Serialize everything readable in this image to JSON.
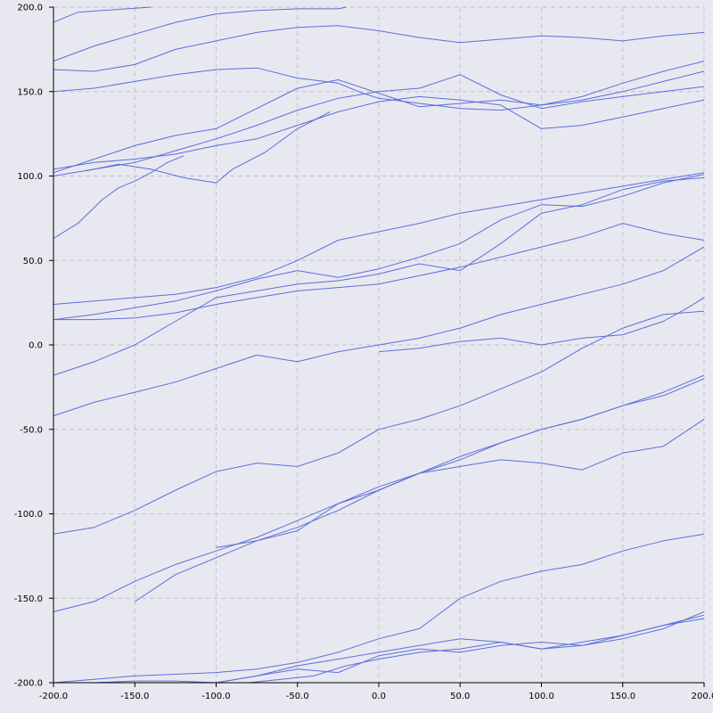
{
  "chart_data": {
    "type": "line",
    "title": "",
    "xlabel": "",
    "ylabel": "",
    "xlim": [
      -200,
      200
    ],
    "ylim": [
      -200,
      200
    ],
    "grid": true,
    "line_color": "#5b6fdc",
    "background_color": "#e8e8f0",
    "grid_color": "#c2c2cc",
    "xticks": [
      -200,
      -150,
      -100,
      -50,
      0,
      50,
      100,
      150,
      200
    ],
    "yticks": [
      -200,
      -150,
      -100,
      -50,
      0,
      50,
      100,
      150,
      200
    ],
    "xtick_labels": [
      "-200.0",
      "-150.0",
      "-100.0",
      "-50.0",
      "0.0",
      "50.0",
      "100.0",
      "150.0",
      "200.0"
    ],
    "ytick_labels": [
      "-200.0",
      "-150.0",
      "-100.0",
      "-50.0",
      "0.0",
      "50.0",
      "100.0",
      "150.0",
      "200.0"
    ],
    "series": [
      {
        "x": [
          -200,
          -185,
          -170,
          -155,
          -140
        ],
        "y": [
          191,
          197,
          198,
          199,
          200
        ]
      },
      {
        "x": [
          -200,
          -175,
          -150,
          -125,
          -100,
          -75,
          -50,
          -25,
          -20
        ],
        "y": [
          168,
          177,
          184,
          191,
          196,
          198,
          199,
          199,
          200
        ]
      },
      {
        "x": [
          -200,
          -175,
          -150,
          -125,
          -100,
          -75,
          -50,
          -25,
          0,
          25,
          50,
          75,
          100,
          125,
          150,
          175,
          200
        ],
        "y": [
          163,
          162,
          166,
          175,
          180,
          185,
          188,
          189,
          186,
          182,
          179,
          181,
          183,
          182,
          180,
          183,
          185
        ]
      },
      {
        "x": [
          -200,
          -175,
          -150,
          -125,
          -100,
          -75,
          -50,
          -25,
          -10,
          0,
          25,
          50,
          75,
          100,
          125,
          150,
          175,
          200
        ],
        "y": [
          150,
          152,
          156,
          160,
          163,
          164,
          158,
          155,
          149,
          146,
          143,
          140,
          139,
          142,
          147,
          155,
          162,
          168
        ]
      },
      {
        "x": [
          -200,
          -175,
          -150,
          -125,
          -100,
          -75,
          -50,
          -25,
          0,
          25,
          50,
          75,
          100,
          125,
          150,
          175,
          200
        ],
        "y": [
          102,
          110,
          118,
          124,
          128,
          140,
          152,
          157,
          149,
          141,
          143,
          145,
          142,
          145,
          150,
          156,
          162
        ]
      },
      {
        "x": [
          -200,
          -175,
          -150,
          -125,
          -100,
          -75,
          -50,
          -25,
          0,
          25,
          50,
          75,
          100,
          125,
          150,
          175,
          200
        ],
        "y": [
          100,
          104,
          108,
          115,
          122,
          130,
          139,
          146,
          150,
          152,
          160,
          148,
          140,
          144,
          147,
          150,
          153
        ]
      },
      {
        "x": [
          -200,
          -175,
          -150,
          -125,
          -100,
          -75,
          -50,
          -25,
          0,
          25,
          50,
          75,
          100,
          125,
          150,
          175,
          200
        ],
        "y": [
          104,
          108,
          110,
          113,
          118,
          122,
          130,
          138,
          144,
          147,
          145,
          142,
          128,
          130,
          135,
          140,
          145
        ]
      },
      {
        "x": [
          -180,
          -160,
          -140,
          -120,
          -100,
          -90,
          -70,
          -50,
          -30
        ],
        "y": [
          103,
          107,
          104,
          99,
          96,
          104,
          114,
          128,
          138
        ]
      },
      {
        "x": [
          -200,
          -185,
          -170,
          -160,
          -150,
          -140,
          -130,
          -120
        ],
        "y": [
          63,
          72,
          86,
          93,
          97,
          102,
          108,
          112
        ]
      },
      {
        "x": [
          -200,
          -175,
          -150,
          -125,
          -100,
          -75,
          -50,
          -25,
          0,
          25,
          50,
          75,
          100,
          125,
          150,
          175,
          200
        ],
        "y": [
          24,
          26,
          28,
          30,
          34,
          40,
          50,
          62,
          67,
          72,
          78,
          82,
          86,
          90,
          94,
          98,
          102
        ]
      },
      {
        "x": [
          -200,
          -175,
          -150,
          -125,
          -100,
          -75,
          -50,
          -25,
          0,
          25,
          50,
          75,
          100,
          125,
          150,
          175,
          200
        ],
        "y": [
          15,
          18,
          22,
          26,
          32,
          39,
          44,
          40,
          45,
          52,
          60,
          74,
          83,
          82,
          88,
          96,
          101
        ]
      },
      {
        "x": [
          -200,
          -175,
          -150,
          -125,
          -100,
          -75,
          -50,
          -25,
          0,
          25,
          50,
          75,
          100,
          125,
          150,
          175,
          200
        ],
        "y": [
          -18,
          -10,
          0,
          14,
          28,
          32,
          36,
          38,
          42,
          48,
          44,
          60,
          78,
          83,
          92,
          97,
          99
        ]
      },
      {
        "x": [
          -200,
          -175,
          -150,
          -125,
          -100,
          -75,
          -50,
          -25,
          0,
          25,
          50,
          75,
          100,
          125,
          150,
          175,
          200
        ],
        "y": [
          -42,
          -34,
          -28,
          -22,
          -14,
          -6,
          -10,
          -4,
          0,
          4,
          10,
          18,
          24,
          30,
          36,
          44,
          58
        ]
      },
      {
        "x": [
          -200,
          -175,
          -150,
          -125,
          -100,
          -75,
          -50,
          -25,
          0,
          25,
          50,
          75,
          100,
          125,
          150,
          175,
          200
        ],
        "y": [
          15,
          15,
          16,
          19,
          24,
          28,
          32,
          34,
          36,
          41,
          46,
          52,
          58,
          64,
          72,
          66,
          62
        ]
      },
      {
        "x": [
          0,
          25,
          50,
          75,
          100,
          125,
          150,
          175,
          190,
          200
        ],
        "y": [
          -4,
          -2,
          2,
          4,
          0,
          4,
          6,
          14,
          22,
          28
        ]
      },
      {
        "x": [
          -200,
          -175,
          -150,
          -125,
          -100,
          -75,
          -50,
          -25,
          0,
          25,
          50,
          75,
          100,
          125,
          150,
          175,
          200
        ],
        "y": [
          -112,
          -108,
          -98,
          -86,
          -75,
          -70,
          -72,
          -64,
          -50,
          -44,
          -36,
          -26,
          -16,
          -2,
          10,
          18,
          20
        ]
      },
      {
        "x": [
          -150,
          -125,
          -100,
          -75,
          -50,
          -25,
          0,
          25,
          50,
          75,
          100,
          125,
          150,
          175,
          200
        ],
        "y": [
          -152,
          -136,
          -126,
          -116,
          -110,
          -94,
          -84,
          -76,
          -68,
          -58,
          -50,
          -44,
          -36,
          -28,
          -18
        ]
      },
      {
        "x": [
          -200,
          -175,
          -150,
          -125,
          -100,
          -75,
          -50,
          -25,
          0,
          25,
          50,
          75,
          100,
          125,
          150,
          175,
          200
        ],
        "y": [
          -158,
          -152,
          -140,
          -130,
          -122,
          -114,
          -104,
          -94,
          -86,
          -76,
          -72,
          -68,
          -70,
          -74,
          -64,
          -60,
          -44
        ]
      },
      {
        "x": [
          -100,
          -75,
          -50,
          -25,
          0,
          25,
          50,
          75,
          100,
          125,
          150,
          175,
          200
        ],
        "y": [
          -120,
          -116,
          -108,
          -98,
          -86,
          -76,
          -66,
          -58,
          -50,
          -44,
          -36,
          -30,
          -20
        ]
      },
      {
        "x": [
          -200,
          -175,
          -150,
          -125,
          -100,
          -75,
          -50,
          -25,
          0,
          25,
          50,
          75,
          100,
          125,
          150,
          175,
          200
        ],
        "y": [
          -200,
          -198,
          -196,
          -195,
          -194,
          -192,
          -188,
          -182,
          -174,
          -168,
          -150,
          -140,
          -134,
          -130,
          -122,
          -116,
          -112
        ]
      },
      {
        "x": [
          -200,
          -175,
          -150,
          -125,
          -100,
          -75,
          -50,
          -25,
          0,
          25,
          50,
          75,
          100,
          125,
          150,
          175,
          200
        ],
        "y": [
          -200,
          -200,
          -199,
          -199,
          -200,
          -196,
          -190,
          -186,
          -182,
          -178,
          -174,
          -176,
          -180,
          -178,
          -172,
          -166,
          -160
        ]
      },
      {
        "x": [
          -100,
          -75,
          -50,
          -25,
          0,
          25,
          50,
          75,
          100,
          125,
          150,
          175,
          200
        ],
        "y": [
          -200,
          -196,
          -192,
          -194,
          -184,
          -180,
          -182,
          -178,
          -176,
          -178,
          -174,
          -168,
          -158
        ]
      },
      {
        "x": [
          -80,
          -60,
          -40,
          -20,
          0,
          25,
          50,
          75,
          100,
          125,
          150,
          175,
          200
        ],
        "y": [
          -200,
          -198,
          -196,
          -190,
          -186,
          -182,
          -180,
          -176,
          -180,
          -176,
          -172,
          -166,
          -162
        ]
      }
    ]
  }
}
